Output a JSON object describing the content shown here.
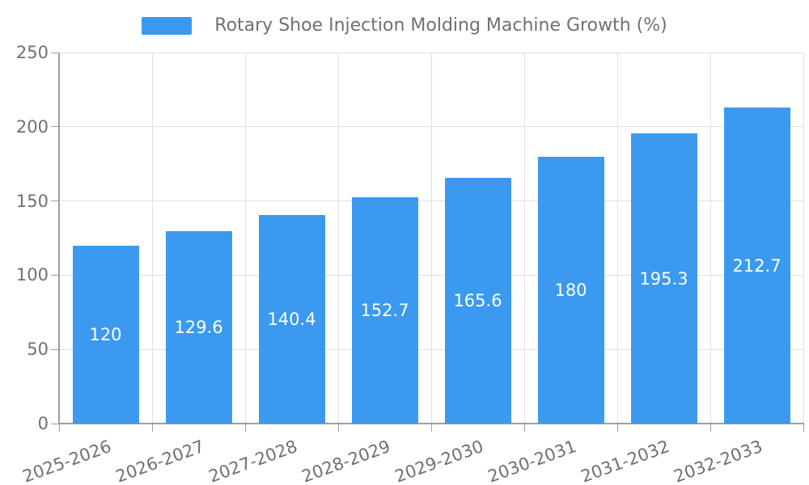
{
  "chart_data": {
    "type": "bar",
    "title": "Rotary Shoe Injection Molding Machine Growth (%)",
    "categories": [
      "2025-2026",
      "2026-2027",
      "2027-2028",
      "2028-2029",
      "2029-2030",
      "2030-2031",
      "2031-2032",
      "2032-2033"
    ],
    "values": [
      120,
      129.6,
      140.4,
      152.7,
      165.6,
      180,
      195.3,
      212.7
    ],
    "value_labels": [
      "120",
      "129.6",
      "140.4",
      "152.7",
      "165.6",
      "180",
      "195.3",
      "212.7"
    ],
    "xlabel": "",
    "ylabel": "",
    "ylim": [
      0,
      250
    ],
    "yticks": [
      0,
      50,
      100,
      150,
      200,
      250
    ],
    "grid": "on",
    "legend_position": "top-center",
    "colors": {
      "bar": "#3B9AEF",
      "value_label": "#FFFFFF",
      "grid": "#E1E1E1",
      "axis": "#9E9E9E",
      "text": "#707070"
    }
  }
}
